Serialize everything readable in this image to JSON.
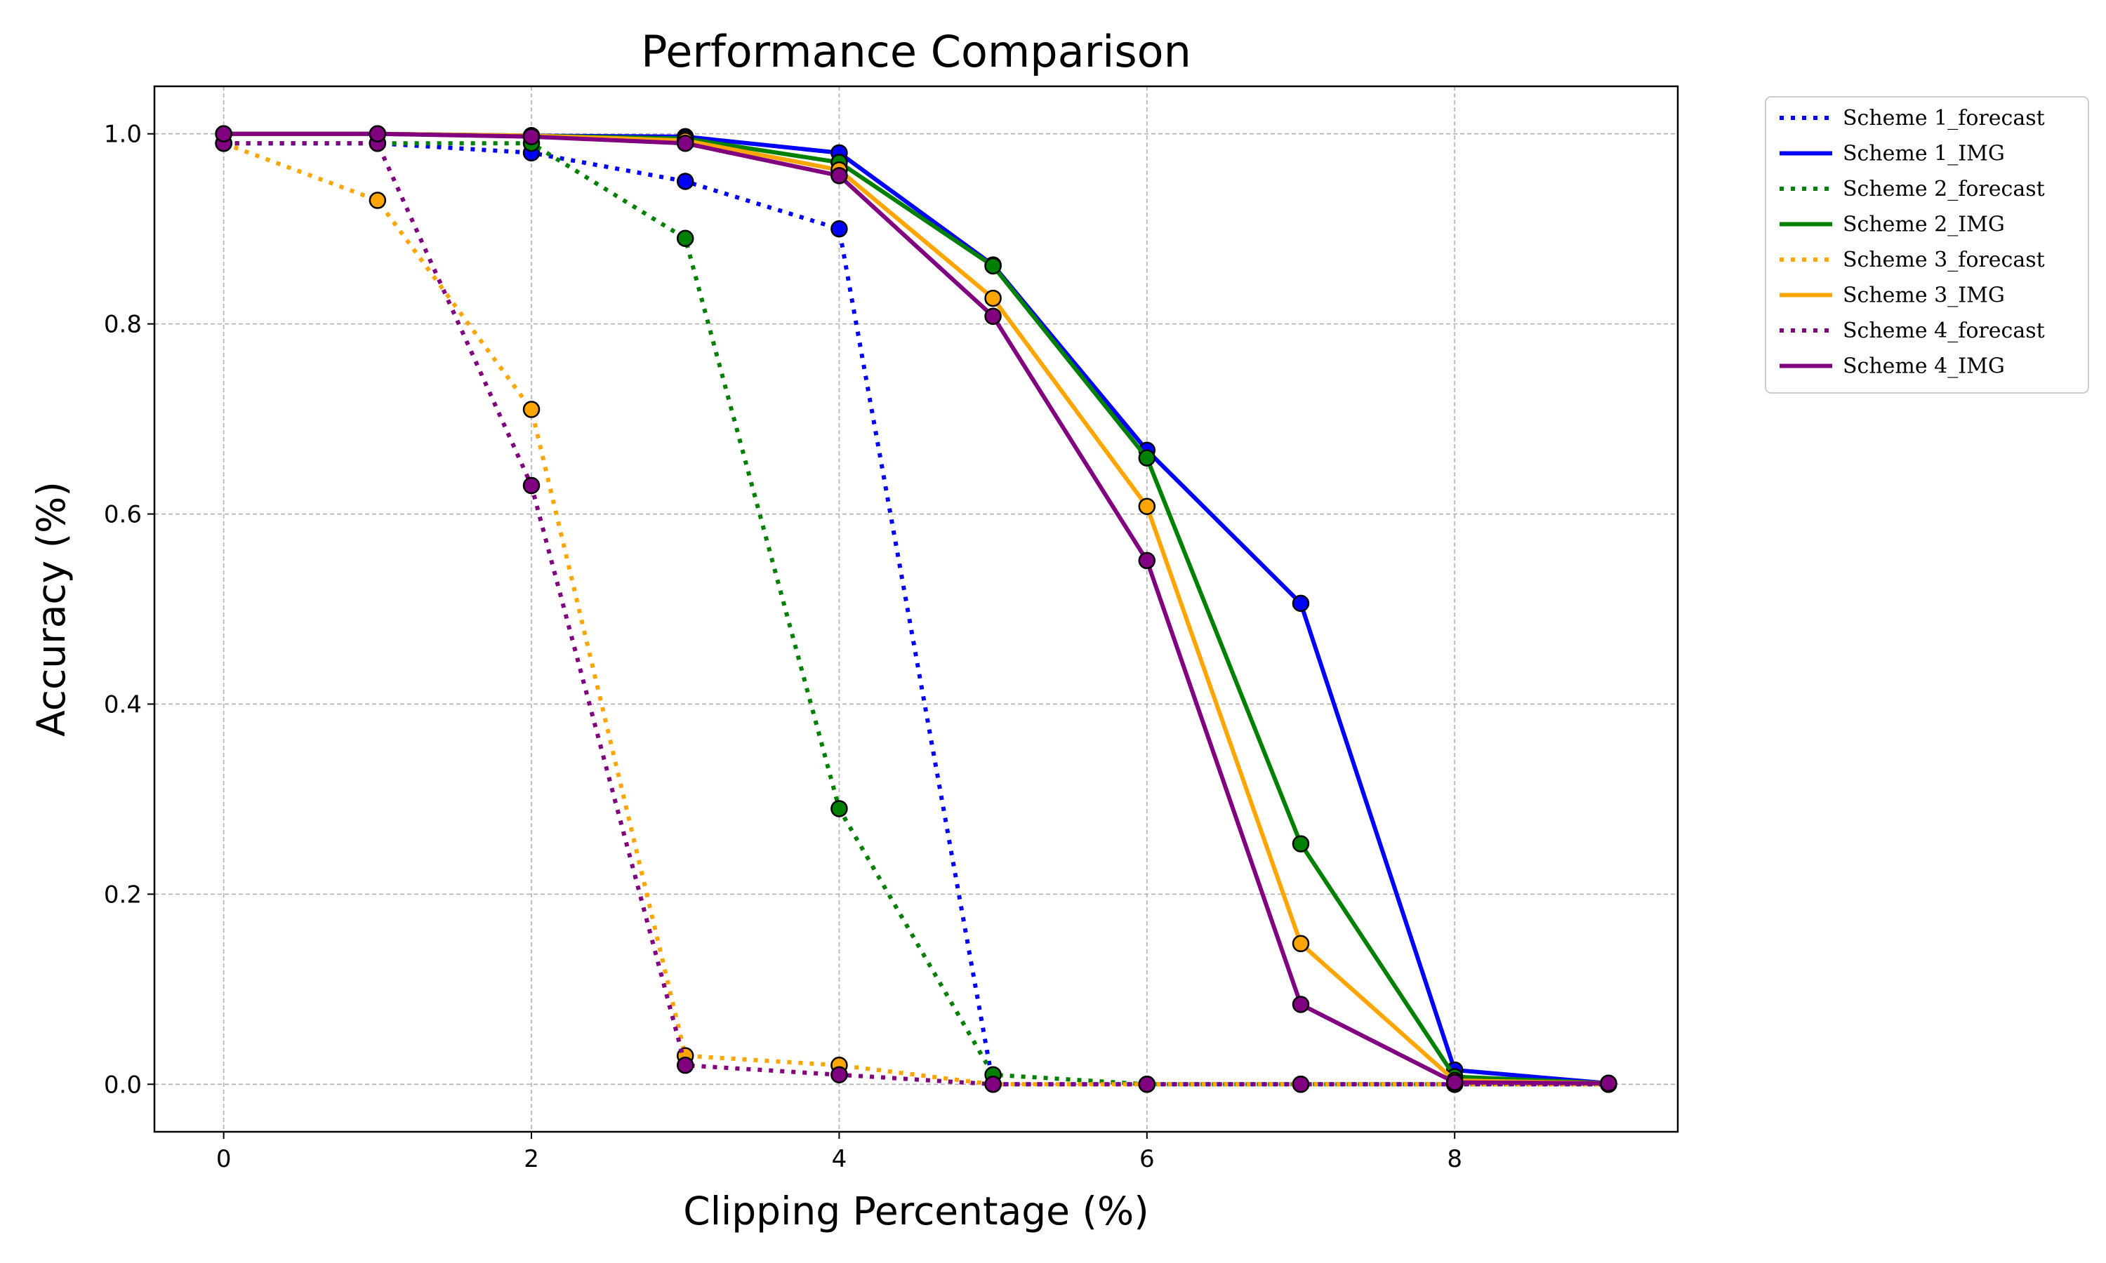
{
  "chart_data": {
    "type": "line",
    "title": "Performance Comparison",
    "xlabel": "Clipping Percentage (%)",
    "ylabel": "Accuracy (%)",
    "xlim": [
      -0.45,
      9.45
    ],
    "ylim": [
      -0.05,
      1.05
    ],
    "xticks": [
      0,
      2,
      4,
      6,
      8
    ],
    "yticks": [
      0.0,
      0.2,
      0.4,
      0.6,
      0.8,
      1.0
    ],
    "xtick_labels": [
      "0",
      "2",
      "4",
      "6",
      "8"
    ],
    "ytick_labels": [
      "0.0",
      "0.2",
      "0.4",
      "0.6",
      "0.8",
      "1.0"
    ],
    "grid": true,
    "legend_position": "outside-top-right",
    "x": [
      0,
      1,
      2,
      3,
      4,
      5,
      6,
      7,
      8,
      9
    ],
    "series": [
      {
        "name": "Scheme 1_forecast",
        "style": "dotted",
        "color": "#0000ff",
        "values": [
          0.99,
          0.99,
          0.98,
          0.95,
          0.9,
          0.0,
          0.0,
          0.0,
          0.0,
          0.0
        ]
      },
      {
        "name": "Scheme 1_IMG",
        "style": "solid",
        "color": "#0000ff",
        "values": [
          1.0,
          1.0,
          0.998,
          0.997,
          0.98,
          0.862,
          0.667,
          0.506,
          0.015,
          0.001
        ]
      },
      {
        "name": "Scheme 2_forecast",
        "style": "dotted",
        "color": "#008000",
        "values": [
          0.99,
          0.99,
          0.99,
          0.89,
          0.29,
          0.01,
          0.0,
          0.0,
          0.0,
          0.0
        ]
      },
      {
        "name": "Scheme 2_IMG",
        "style": "solid",
        "color": "#008000",
        "values": [
          1.0,
          1.0,
          0.998,
          0.995,
          0.97,
          0.861,
          0.659,
          0.253,
          0.008,
          0.001
        ]
      },
      {
        "name": "Scheme 3_forecast",
        "style": "dotted",
        "color": "#ffa500",
        "values": [
          0.99,
          0.93,
          0.71,
          0.03,
          0.02,
          0.0,
          0.0,
          0.0,
          0.0,
          0.0
        ]
      },
      {
        "name": "Scheme 3_IMG",
        "style": "solid",
        "color": "#ffa500",
        "values": [
          1.0,
          1.0,
          0.998,
          0.993,
          0.962,
          0.827,
          0.608,
          0.148,
          0.004,
          0.001
        ]
      },
      {
        "name": "Scheme 4_forecast",
        "style": "dotted",
        "color": "#800080",
        "values": [
          0.99,
          0.99,
          0.63,
          0.02,
          0.01,
          0.0,
          0.0,
          0.0,
          0.0,
          0.0
        ]
      },
      {
        "name": "Scheme 4_IMG",
        "style": "solid",
        "color": "#800080",
        "values": [
          1.0,
          1.0,
          0.997,
          0.99,
          0.956,
          0.808,
          0.551,
          0.084,
          0.002,
          0.001
        ]
      }
    ]
  }
}
